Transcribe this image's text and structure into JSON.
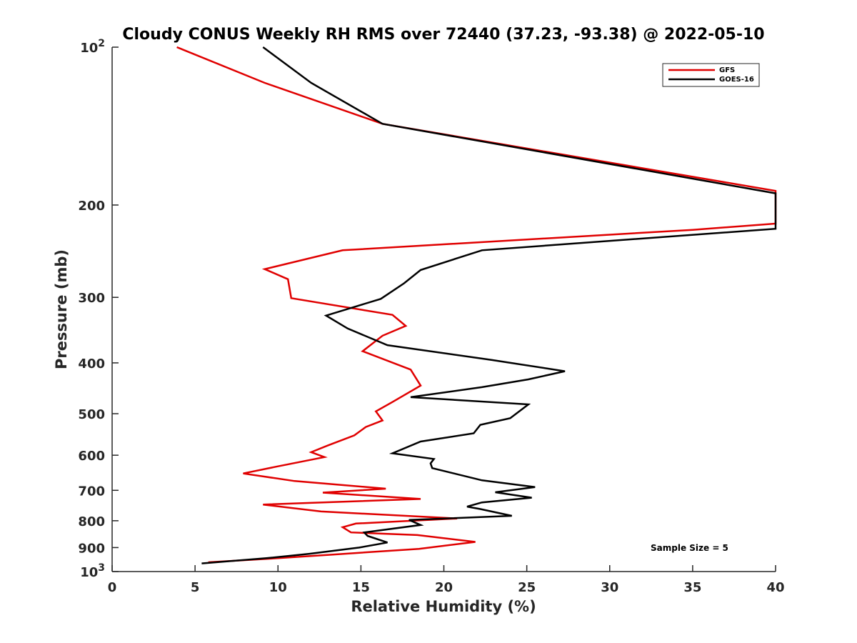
{
  "chart_data": {
    "type": "line",
    "title": "Cloudy CONUS Weekly RH RMS over 72440 (37.23, -93.38) @ 2022-05-10",
    "xlabel": "Relative Humidity (%)",
    "ylabel": "Pressure (mb)",
    "xlim": [
      0,
      40
    ],
    "ylim": [
      100,
      1000
    ],
    "y_scale": "log",
    "y_reversed": true,
    "x_ticks": [
      "0",
      "5",
      "10",
      "15",
      "20",
      "25",
      "30",
      "35",
      "40"
    ],
    "y_ticks": [
      {
        "value": 100,
        "base": "10",
        "exp": "2"
      },
      {
        "value": 200,
        "label": "200"
      },
      {
        "value": 300,
        "label": "300"
      },
      {
        "value": 400,
        "label": "400"
      },
      {
        "value": 500,
        "label": "500"
      },
      {
        "value": 600,
        "label": "600"
      },
      {
        "value": 700,
        "label": "700"
      },
      {
        "value": 800,
        "label": "800"
      },
      {
        "value": 900,
        "label": "900"
      },
      {
        "value": 1000,
        "base": "10",
        "exp": "3"
      }
    ],
    "legend_position": "top-right",
    "annotation": "Sample Size = 5",
    "series": [
      {
        "name": "GFS",
        "color": "#e00000",
        "points": [
          [
            3.9,
            100
          ],
          [
            9.2,
            117
          ],
          [
            16.3,
            140
          ],
          [
            40,
            188
          ],
          [
            40,
            217
          ],
          [
            35,
            223
          ],
          [
            13.9,
            244
          ],
          [
            9.2,
            265
          ],
          [
            10.6,
            277
          ],
          [
            10.8,
            301
          ],
          [
            16.9,
            324
          ],
          [
            17.7,
            340
          ],
          [
            16.3,
            355
          ],
          [
            15.1,
            380
          ],
          [
            18.0,
            412
          ],
          [
            18.6,
            442
          ],
          [
            16.9,
            475
          ],
          [
            15.9,
            495
          ],
          [
            16.3,
            515
          ],
          [
            15.3,
            530
          ],
          [
            14.6,
            550
          ],
          [
            13.0,
            575
          ],
          [
            12.0,
            592
          ],
          [
            12.8,
            605
          ],
          [
            10.0,
            630
          ],
          [
            7.9,
            650
          ],
          [
            11.0,
            672
          ],
          [
            16.5,
            695
          ],
          [
            12.7,
            707
          ],
          [
            18.6,
            727
          ],
          [
            9.1,
            745
          ],
          [
            12.6,
            768
          ],
          [
            20.8,
            792
          ],
          [
            14.7,
            810
          ],
          [
            13.9,
            823
          ],
          [
            14.4,
            842
          ],
          [
            18.4,
            852
          ],
          [
            21.9,
            878
          ],
          [
            18.5,
            905
          ],
          [
            13.3,
            928
          ],
          [
            10.0,
            943
          ],
          [
            5.8,
            960
          ]
        ]
      },
      {
        "name": "GOES-16",
        "color": "#000000",
        "points": [
          [
            9.1,
            100
          ],
          [
            12.0,
            117
          ],
          [
            16.3,
            140
          ],
          [
            40,
            190
          ],
          [
            40,
            222
          ],
          [
            22.3,
            244
          ],
          [
            18.6,
            266
          ],
          [
            17.6,
            282
          ],
          [
            16.2,
            302
          ],
          [
            12.9,
            325
          ],
          [
            14.2,
            344
          ],
          [
            16.6,
            370
          ],
          [
            22.9,
            395
          ],
          [
            27.3,
            415
          ],
          [
            25.1,
            430
          ],
          [
            22.3,
            445
          ],
          [
            18.0,
            465
          ],
          [
            25.1,
            480
          ],
          [
            24.0,
            510
          ],
          [
            22.2,
            525
          ],
          [
            21.8,
            545
          ],
          [
            18.6,
            565
          ],
          [
            16.9,
            595
          ],
          [
            19.4,
            610
          ],
          [
            19.2,
            622
          ],
          [
            19.3,
            635
          ],
          [
            22.3,
            670
          ],
          [
            25.5,
            690
          ],
          [
            23.1,
            706
          ],
          [
            25.3,
            723
          ],
          [
            22.3,
            738
          ],
          [
            21.4,
            752
          ],
          [
            22.2,
            760
          ],
          [
            24.1,
            783
          ],
          [
            17.9,
            797
          ],
          [
            18.6,
            815
          ],
          [
            15.2,
            842
          ],
          [
            15.4,
            855
          ],
          [
            16.6,
            880
          ],
          [
            14.9,
            900
          ],
          [
            11.9,
            925
          ],
          [
            9.3,
            943
          ],
          [
            5.4,
            965
          ]
        ]
      }
    ]
  }
}
